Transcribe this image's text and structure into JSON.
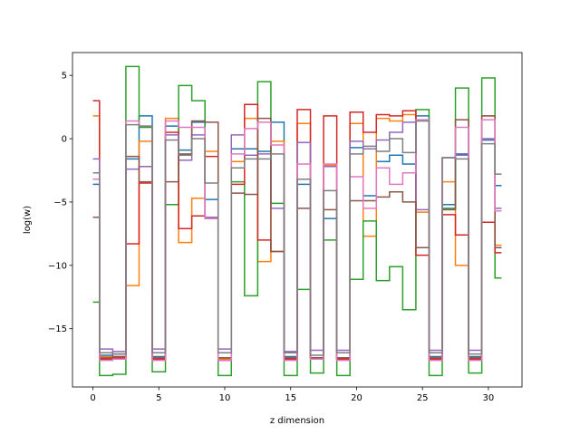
{
  "chart_data": {
    "type": "line",
    "step": "mid",
    "xlabel": "z dimension",
    "ylabel": "log(w)",
    "xlim": [
      -1.55,
      32.55
    ],
    "ylim": [
      -19.6,
      6.8
    ],
    "xticks": [
      0,
      5,
      10,
      15,
      20,
      25,
      30
    ],
    "yticks": [
      -15,
      -10,
      -5,
      0,
      5
    ],
    "x": [
      0,
      1,
      2,
      3,
      4,
      5,
      6,
      7,
      8,
      9,
      10,
      11,
      12,
      13,
      14,
      15,
      16,
      17,
      18,
      19,
      20,
      21,
      22,
      23,
      24,
      25,
      26,
      27,
      28,
      29,
      30,
      31
    ],
    "series": [
      {
        "color": "#1f77b4",
        "values": [
          -3.6,
          -17.1,
          -17.0,
          -1.6,
          1.8,
          -17.2,
          1.0,
          -0.9,
          1.3,
          -4.8,
          -17.3,
          -0.8,
          -0.8,
          -1.0,
          1.3,
          -17.2,
          -3.6,
          -17.3,
          -6.3,
          -17.3,
          -0.7,
          -4.5,
          -1.8,
          -1.3,
          -2.0,
          1.8,
          -17.2,
          -5.2,
          -1.2,
          -17.2,
          -0.1,
          -3.7
        ]
      },
      {
        "color": "#ff7f0e",
        "values": [
          1.8,
          -17.2,
          -17.2,
          -11.6,
          -0.2,
          -17.3,
          1.6,
          -8.2,
          -4.7,
          -1.0,
          -17.4,
          -1.8,
          1.6,
          -9.7,
          -0.2,
          -17.3,
          1.2,
          -17.3,
          -2.1,
          -17.4,
          1.2,
          -7.7,
          1.6,
          1.4,
          1.9,
          -5.8,
          -17.3,
          -3.4,
          -10.0,
          -17.3,
          1.8,
          -8.4
        ]
      },
      {
        "color": "#2ca02c",
        "values": [
          -12.9,
          -18.7,
          -18.6,
          5.7,
          0.9,
          -18.4,
          -5.2,
          4.2,
          3.0,
          -6.3,
          -18.7,
          -3.4,
          -12.4,
          4.5,
          -5.1,
          -18.7,
          -11.9,
          -18.5,
          -8.0,
          -18.7,
          -11.1,
          -6.5,
          -11.2,
          -10.1,
          -13.5,
          2.3,
          -18.7,
          -5.5,
          4.0,
          -18.5,
          4.8,
          -11.0
        ]
      },
      {
        "color": "#d62728",
        "values": [
          3.0,
          -17.4,
          -17.3,
          -8.3,
          -3.5,
          -17.4,
          0.5,
          -7.1,
          -6.1,
          -1.4,
          -17.5,
          -3.6,
          2.7,
          -8.0,
          -8.9,
          -17.4,
          2.3,
          -17.3,
          1.8,
          -17.4,
          2.1,
          0.5,
          1.9,
          1.8,
          2.2,
          -9.2,
          -17.4,
          -6.0,
          -7.6,
          -17.4,
          -6.6,
          -9.0
        ]
      },
      {
        "color": "#9467bd",
        "values": [
          -1.6,
          -16.6,
          -16.8,
          -2.4,
          -2.2,
          -16.6,
          0.3,
          -1.7,
          0.3,
          -6.2,
          -16.6,
          0.3,
          -1.3,
          -1.2,
          -5.5,
          -16.8,
          -0.3,
          -16.7,
          -2.2,
          -16.7,
          -0.2,
          -0.8,
          -0.1,
          0.5,
          1.3,
          -5.6,
          -16.7,
          -1.5,
          -1.3,
          -16.7,
          0.0,
          -5.5
        ]
      },
      {
        "color": "#8c564b",
        "values": [
          -6.2,
          -17.3,
          -17.2,
          -1.4,
          -3.4,
          -17.3,
          -3.4,
          -1.2,
          1.4,
          1.3,
          -17.3,
          -4.3,
          -4.4,
          1.6,
          -8.9,
          -17.3,
          -5.5,
          -17.3,
          -5.6,
          -17.3,
          -4.9,
          -4.9,
          -4.6,
          -4.2,
          -5.0,
          -8.6,
          -17.3,
          -5.6,
          1.5,
          -17.3,
          1.8,
          -8.6
        ]
      },
      {
        "color": "#e377c2",
        "values": [
          -3.2,
          -17.5,
          -17.4,
          1.4,
          1.0,
          -17.5,
          1.4,
          0.9,
          0.9,
          -6.3,
          -17.5,
          -1.2,
          0.8,
          1.3,
          -0.5,
          -17.5,
          -2.0,
          -17.4,
          -2.0,
          -17.5,
          -3.0,
          -5.5,
          -2.3,
          -3.6,
          -2.7,
          1.5,
          -17.5,
          -1.5,
          0.9,
          -17.5,
          1.5,
          -5.7
        ]
      },
      {
        "color": "#7f7f7f",
        "values": [
          -2.7,
          -16.9,
          -17.0,
          1.1,
          1.0,
          -16.9,
          -0.1,
          -1.3,
          0.0,
          -3.5,
          -16.9,
          -2.3,
          -1.6,
          -1.6,
          -1.2,
          -16.9,
          -3.2,
          -17.1,
          -4.1,
          -16.9,
          -1.2,
          -0.6,
          -1.0,
          0.0,
          -1.1,
          1.4,
          -16.9,
          -1.5,
          -1.6,
          -17.0,
          -0.4,
          -2.8
        ]
      }
    ]
  }
}
